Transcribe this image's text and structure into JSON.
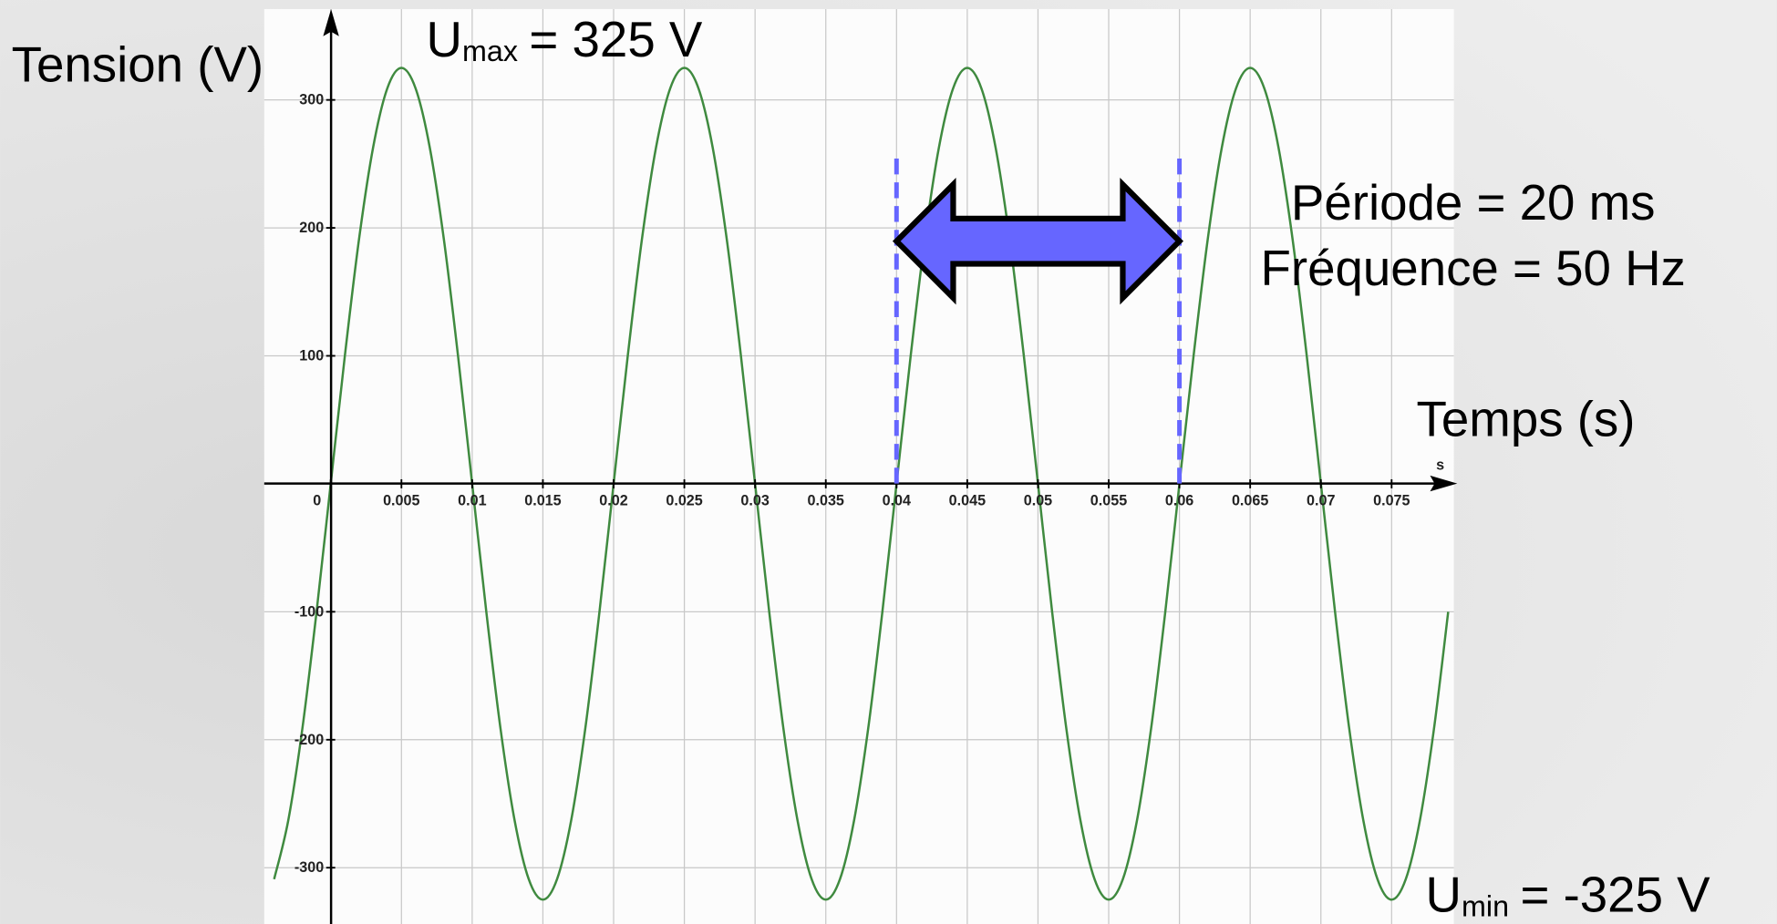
{
  "chart_data": {
    "type": "line",
    "y_label": "Tension (V)",
    "x_label": "Temps (s)",
    "x_unit": "s",
    "x": [
      -0.004,
      -0.003,
      -0.002,
      -0.001,
      0,
      0.001,
      0.002,
      0.003,
      0.004,
      0.005,
      0.006,
      0.007,
      0.008,
      0.009,
      0.01,
      0.011,
      0.012,
      0.013,
      0.014,
      0.015,
      0.016,
      0.017,
      0.018,
      0.019,
      0.02,
      0.021,
      0.022,
      0.023,
      0.024,
      0.025,
      0.026,
      0.027,
      0.028,
      0.029,
      0.03,
      0.031,
      0.032,
      0.033,
      0.034,
      0.035,
      0.036,
      0.037,
      0.038,
      0.039,
      0.04,
      0.041,
      0.042,
      0.043,
      0.044,
      0.045,
      0.046,
      0.047,
      0.048,
      0.049,
      0.05,
      0.051,
      0.052,
      0.053,
      0.054,
      0.055,
      0.056,
      0.057,
      0.058,
      0.059,
      0.06,
      0.061,
      0.062,
      0.063,
      0.064,
      0.065,
      0.066,
      0.067,
      0.068,
      0.069,
      0.07,
      0.071,
      0.072,
      0.073,
      0.074,
      0.075,
      0.076,
      0.077,
      0.078,
      0.079
    ],
    "series": [
      {
        "color": "#3f8a3f",
        "values": [
          -309,
          -263,
          -191,
          -100,
          0,
          100,
          191,
          263,
          309,
          325,
          309,
          263,
          191,
          100,
          0,
          -100,
          -191,
          -263,
          -309,
          -325,
          -309,
          -263,
          -191,
          -100,
          0,
          100,
          191,
          263,
          309,
          325,
          309,
          263,
          191,
          100,
          0,
          -100,
          -191,
          -263,
          -309,
          -325,
          -309,
          -263,
          -191,
          -100,
          0,
          100,
          191,
          263,
          309,
          325,
          309,
          263,
          191,
          100,
          0,
          -100,
          -191,
          -263,
          -309,
          -325,
          -309,
          -263,
          -191,
          -100,
          0,
          100,
          191,
          263,
          309,
          325,
          309,
          263,
          191,
          100,
          0,
          -100,
          -191,
          -263,
          -309,
          -325,
          -309,
          -263,
          -191,
          -100
        ]
      }
    ],
    "xlim": [
      -0.0047,
      0.0794
    ],
    "ylim": [
      -344,
      371
    ],
    "xticks": [
      0,
      0.005,
      0.01,
      0.015,
      0.02,
      0.025,
      0.03,
      0.035,
      0.04,
      0.045,
      0.05,
      0.055,
      0.06,
      0.065,
      0.07,
      0.075
    ],
    "yticks": [
      -300,
      -200,
      -100,
      100,
      200,
      300
    ],
    "grid": true,
    "period_markers": {
      "x": [
        0.04,
        0.06
      ],
      "color": "#6666ff"
    },
    "annotations": {
      "umax": {
        "symbol": "U",
        "subscript": "max",
        "text": "= 325 V"
      },
      "umin": {
        "symbol": "U",
        "subscript": "min",
        "text": "= -325 V"
      },
      "period": "Période = 20 ms",
      "frequency": "Fréquence = 50 Hz"
    }
  }
}
